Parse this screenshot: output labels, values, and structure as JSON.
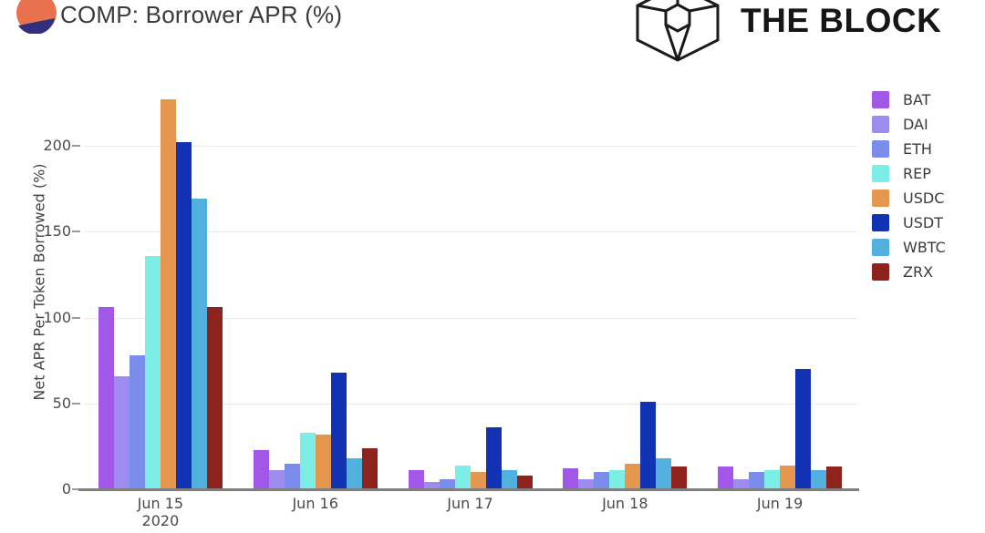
{
  "header": {
    "title": "COMP: Borrower APR (%)",
    "brand": "THE BLOCK"
  },
  "colors": {
    "compound_logo_top": "#e8724e",
    "compound_logo_bottom": "#2f2f7c",
    "axis_line": "#7f7f7f",
    "gridline": "#e9e9f0",
    "tick_text": "#4a4a4a"
  },
  "chart_data": {
    "type": "bar",
    "title": "COMP: Borrower APR (%)",
    "xlabel": "",
    "ylabel": "Net APR Per Token Borrowed (%)",
    "categories": [
      "Jun 15",
      "Jun 16",
      "Jun 17",
      "Jun 18",
      "Jun 19"
    ],
    "category_sublabels": [
      "2020",
      "",
      "",
      "",
      ""
    ],
    "yticks": [
      0,
      50,
      100,
      150,
      200
    ],
    "ylim": [
      0,
      237
    ],
    "grid": true,
    "legend_position": "right",
    "series": [
      {
        "name": "BAT",
        "color": "#a158e8",
        "values": [
          106,
          23,
          11,
          12,
          13
        ]
      },
      {
        "name": "DAI",
        "color": "#9b8cee",
        "values": [
          66,
          11,
          4,
          6,
          6
        ]
      },
      {
        "name": "ETH",
        "color": "#7a8cec",
        "values": [
          78,
          15,
          6,
          10,
          10
        ]
      },
      {
        "name": "REP",
        "color": "#7deee6",
        "values": [
          136,
          33,
          14,
          11,
          11
        ]
      },
      {
        "name": "USDC",
        "color": "#e5964f",
        "values": [
          227,
          32,
          10,
          15,
          14
        ]
      },
      {
        "name": "USDT",
        "color": "#1132b2",
        "values": [
          202,
          68,
          36,
          51,
          70
        ]
      },
      {
        "name": "WBTC",
        "color": "#52b0de",
        "values": [
          169,
          18,
          11,
          18,
          11
        ]
      },
      {
        "name": "ZRX",
        "color": "#8e231e",
        "values": [
          106,
          24,
          8,
          13,
          13
        ]
      }
    ]
  }
}
